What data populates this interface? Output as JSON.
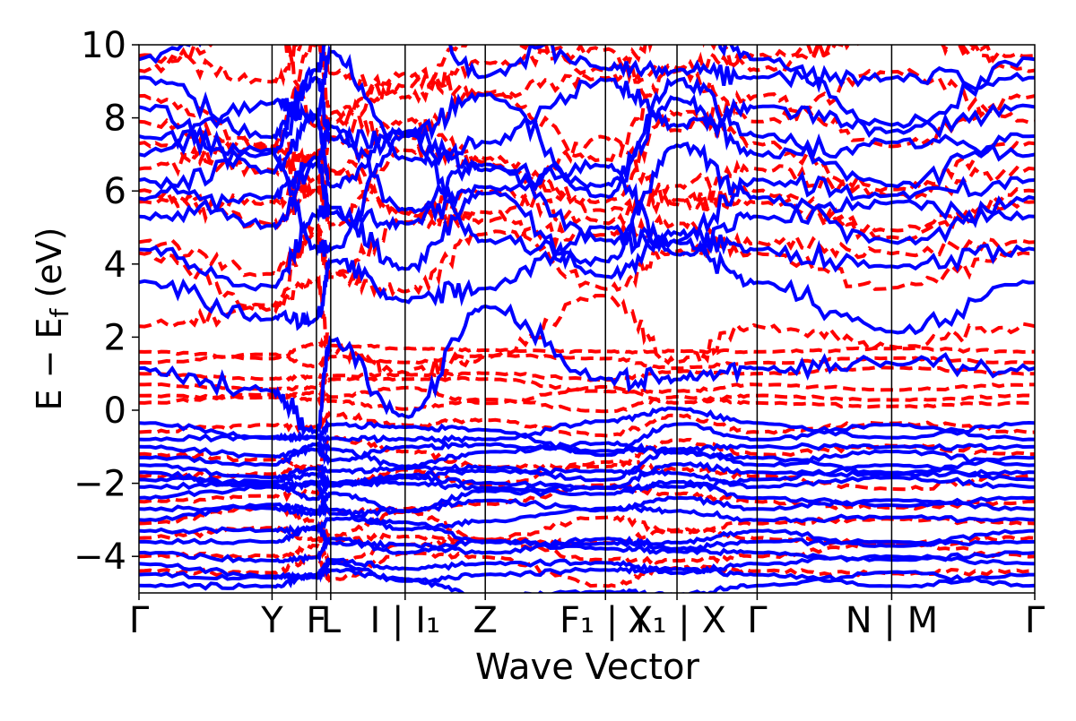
{
  "chart_data": {
    "type": "line",
    "xlabel": "Wave Vector",
    "ylabel": "E − E",
    "ylabel_sub": "f",
    "ylabel_unit": "(eV)",
    "ylim": [
      -5,
      10
    ],
    "xlim": [
      0,
      10
    ],
    "yticks": [
      {
        "value": -4,
        "label": "−4"
      },
      {
        "value": -2,
        "label": "−2"
      },
      {
        "value": 0,
        "label": "0"
      },
      {
        "value": 2,
        "label": "2"
      },
      {
        "value": 4,
        "label": "4"
      },
      {
        "value": 6,
        "label": "6"
      },
      {
        "value": 8,
        "label": "8"
      },
      {
        "value": 10,
        "label": "10"
      }
    ],
    "kpoints": [
      {
        "label": "Γ",
        "pos": 0.0
      },
      {
        "label": "Y",
        "pos": 0.93
      },
      {
        "label": "F",
        "pos": 1.24
      },
      {
        "label": "L",
        "pos": 1.34
      },
      {
        "label": "I | I₁",
        "pos": 1.86
      },
      {
        "label": "Z",
        "pos": 2.42
      },
      {
        "label": "F₁ | Y",
        "pos": 3.26
      },
      {
        "label": "X₁ | X",
        "pos": 3.76
      },
      {
        "label": "Γ",
        "pos": 4.32
      },
      {
        "label": "N | M",
        "pos": 5.26
      },
      {
        "label": "Γ",
        "pos": 6.26
      }
    ],
    "series": [
      {
        "color": "#0000ff",
        "style": "solid",
        "bands_conduction_at_gamma": [
          1.15,
          3.5,
          4.4,
          5.3,
          5.8,
          6.3,
          7.0,
          7.5,
          8.3,
          9.1,
          9.6
        ],
        "bands_valence_at_gamma": [
          -0.35,
          -0.8,
          -1.0,
          -1.3,
          -1.5,
          -1.7,
          -1.9,
          -2.1,
          -2.4,
          -2.7,
          -3.0,
          -3.3,
          -3.6,
          -3.9,
          -4.2,
          -4.5,
          -4.8
        ]
      },
      {
        "color": "#ff0000",
        "style": "dashed",
        "bands_conduction_at_gamma": [
          2.3,
          4.3,
          4.6,
          5.7,
          6.0,
          6.6,
          7.3,
          7.9,
          8.6,
          9.3,
          9.7
        ],
        "bands_flat_gap": [
          1.6,
          1.3,
          1.0,
          0.7,
          0.4,
          0.2
        ],
        "bands_valence_at_gamma": [
          -0.6,
          -1.2,
          -1.8,
          -2.5,
          -3.1,
          -3.5,
          -4.0,
          -4.4
        ]
      }
    ]
  }
}
